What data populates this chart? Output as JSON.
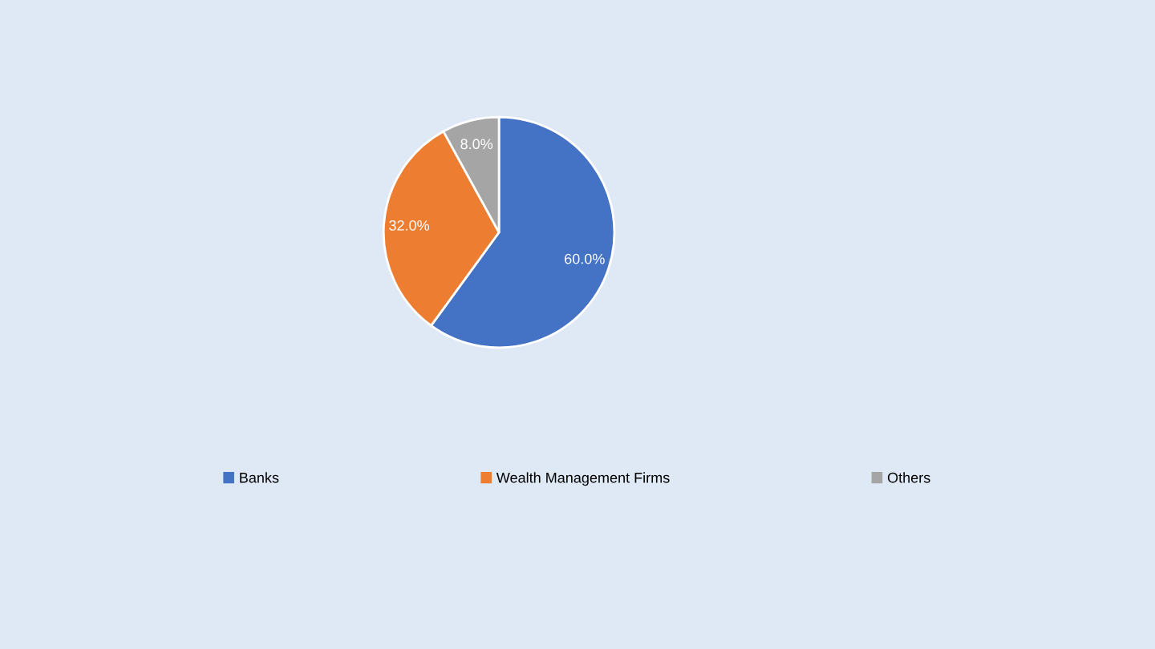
{
  "chart_data": {
    "type": "pie",
    "categories": [
      "Banks",
      "Wealth Management Firms",
      "Others"
    ],
    "values": [
      60,
      32,
      8
    ],
    "colors": [
      "#4472c4",
      "#ed7d31",
      "#a5a5a5"
    ],
    "value_labels": [
      "60.0%",
      "32.0%",
      "8.0%"
    ],
    "legend": "bottom"
  }
}
